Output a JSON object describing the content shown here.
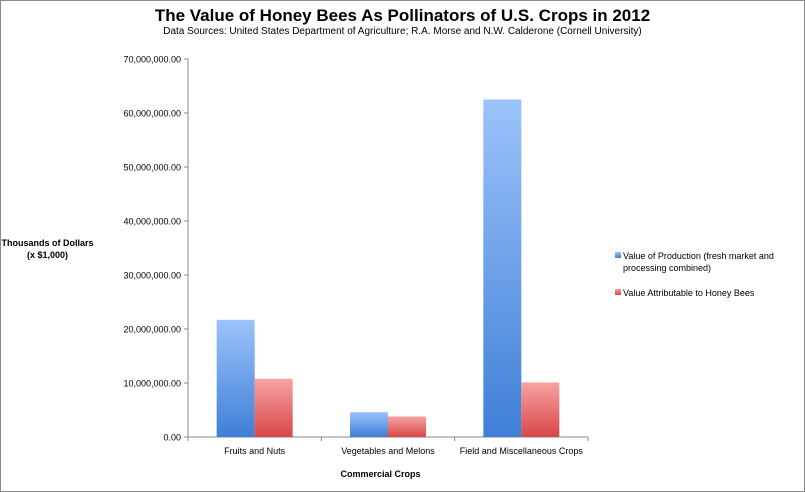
{
  "chart_data": {
    "type": "bar",
    "title": "The Value of Honey Bees As Pollinators of U.S. Crops in 2012",
    "subtitle": "Data Sources: United States Department of Agriculture; R.A. Morse and N.W. Calderone (Cornell University)",
    "ylabel_line1": "Thousands of Dollars",
    "ylabel_line2": "(x $1,000)",
    "xlabel": "Commercial Crops",
    "categories": [
      "Fruits and Nuts",
      "Vegetables and Melons",
      "Field and Miscellaneous Crops"
    ],
    "series": [
      {
        "name": "Value of Production (fresh market and processing combined)",
        "values": [
          21700000,
          4600000,
          62500000
        ],
        "color": "#4f86d9"
      },
      {
        "name": "Value Attributable to Honey Bees",
        "values": [
          10800000,
          3800000,
          10100000
        ],
        "color": "#dc4a4a"
      }
    ],
    "yticks": [
      "0.00",
      "10,000,000.00",
      "20,000,000.00",
      "30,000,000.00",
      "40,000,000.00",
      "50,000,000.00",
      "60,000,000.00",
      "70,000,000.00"
    ],
    "ylim": [
      0,
      70000000
    ],
    "grid": false,
    "legend_position": "right"
  }
}
